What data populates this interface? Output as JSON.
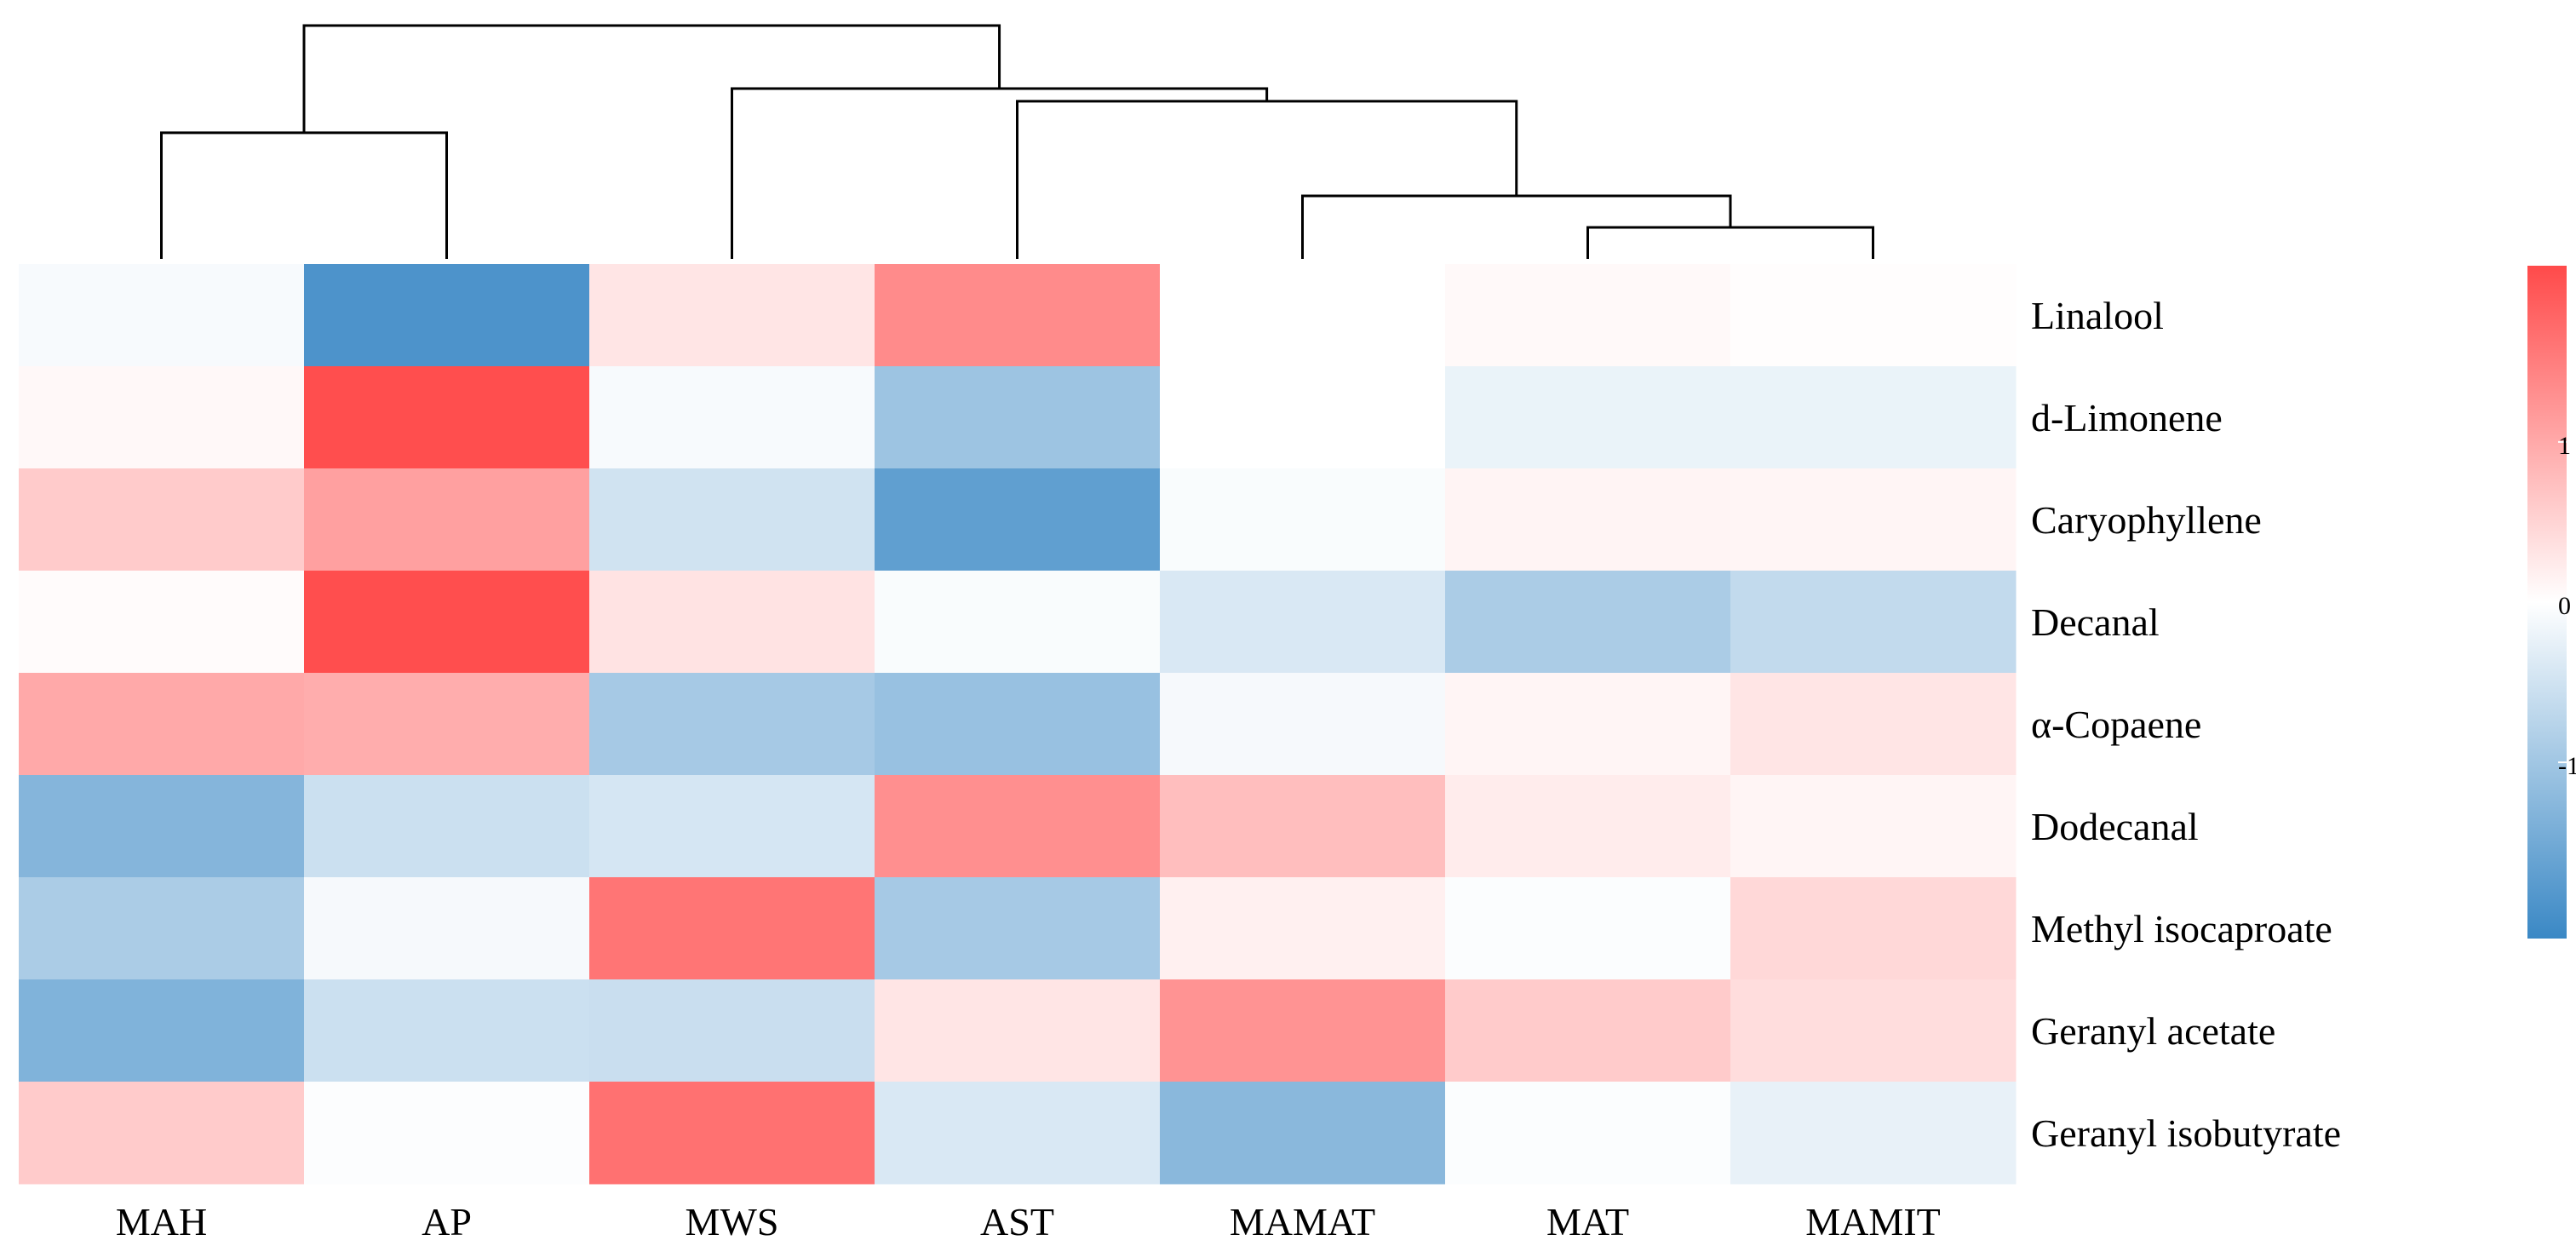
{
  "chart_data": {
    "type": "heatmap",
    "title": "",
    "columns": [
      "MAH",
      "AP",
      "MWS",
      "AST",
      "MAMAT",
      "MAT",
      "MAMIT"
    ],
    "rows": [
      "Linalool",
      "d-Limonene",
      "Caryophyllene",
      "Decanal",
      "α-Copaene",
      "Dodecanal",
      "Methyl isocaproate",
      "Geranyl acetate",
      "Geranyl isobutyrate"
    ],
    "values": [
      [
        -0.08,
        -1.9,
        0.3,
        1.35,
        0.0,
        0.07,
        0.02
      ],
      [
        0.08,
        2.05,
        -0.08,
        -1.05,
        0.0,
        -0.22,
        -0.22
      ],
      [
        0.6,
        1.1,
        -0.5,
        -1.7,
        -0.06,
        0.13,
        0.12
      ],
      [
        0.05,
        2.05,
        0.33,
        -0.06,
        -0.4,
        -0.9,
        -0.65
      ],
      [
        1.0,
        0.95,
        -0.95,
        -1.1,
        -0.1,
        0.12,
        0.3
      ],
      [
        -1.3,
        -0.55,
        -0.45,
        1.3,
        0.75,
        0.22,
        0.12
      ],
      [
        -0.9,
        -0.1,
        1.6,
        -0.95,
        0.17,
        -0.04,
        0.45
      ],
      [
        -1.35,
        -0.55,
        -0.58,
        0.3,
        1.25,
        0.6,
        0.4
      ],
      [
        0.6,
        -0.03,
        1.65,
        -0.4,
        -1.25,
        -0.04,
        -0.25
      ]
    ],
    "colorscale": {
      "low": "#3a88c5",
      "mid": "#ffffff",
      "high": "#ff4a4a",
      "min": -2.1,
      "max": 2.1,
      "ticks": [
        1,
        0,
        -1
      ]
    },
    "dendrogram": {
      "leaf_order": [
        "MAH",
        "AP",
        "MWS",
        "AST",
        "MAMAT",
        "MAT",
        "MAMIT"
      ],
      "merges": [
        {
          "left": [
            "MAT"
          ],
          "right": [
            "MAMIT"
          ],
          "height": 0.5
        },
        {
          "left": [
            "MAMAT"
          ],
          "right": [
            "MAT",
            "MAMIT"
          ],
          "height": 1.0
        },
        {
          "left": [
            "MAH"
          ],
          "right": [
            "AP"
          ],
          "height": 2.0
        },
        {
          "left": [
            "AST"
          ],
          "right": [
            "MAMAT",
            "MAT",
            "MAMIT"
          ],
          "height": 2.5
        },
        {
          "left": [
            "MWS"
          ],
          "right": [
            "AST",
            "MAMAT",
            "MAT",
            "MAMIT"
          ],
          "height": 2.7
        },
        {
          "left": [
            "MAH",
            "AP"
          ],
          "right": [
            "MWS",
            "AST",
            "MAMAT",
            "MAT",
            "MAMIT"
          ],
          "height": 3.7
        }
      ]
    }
  }
}
